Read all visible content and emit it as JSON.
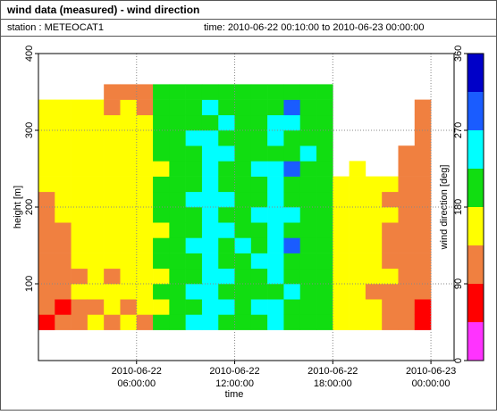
{
  "header": {
    "title": "wind data (measured) - wind direction",
    "station": "station : METEOCAT1",
    "time": "time: 2010-06-22 00:10:00 to 2010-06-23 00:00:00"
  },
  "chart_data": {
    "type": "heatmap",
    "xlabel": "time",
    "ylabel": "height [m]",
    "x": [
      "2010-06-22 00:00:00",
      "2010-06-22 01:00:00",
      "2010-06-22 02:00:00",
      "2010-06-22 03:00:00",
      "2010-06-22 04:00:00",
      "2010-06-22 05:00:00",
      "2010-06-22 06:00:00",
      "2010-06-22 07:00:00",
      "2010-06-22 08:00:00",
      "2010-06-22 09:00:00",
      "2010-06-22 10:00:00",
      "2010-06-22 11:00:00",
      "2010-06-22 12:00:00",
      "2010-06-22 13:00:00",
      "2010-06-22 14:00:00",
      "2010-06-22 15:00:00",
      "2010-06-22 16:00:00",
      "2010-06-22 17:00:00",
      "2010-06-22 18:00:00",
      "2010-06-22 19:00:00",
      "2010-06-22 20:00:00",
      "2010-06-22 21:00:00",
      "2010-06-22 22:00:00",
      "2010-06-22 23:00:00",
      "2010-06-23 00:00:00"
    ],
    "y": [
      40,
      60,
      80,
      100,
      120,
      140,
      160,
      180,
      200,
      220,
      240,
      260,
      280,
      300,
      320,
      340,
      360
    ],
    "values": [
      [
        70,
        115,
        115,
        115,
        115,
        115,
        115,
        115,
        115,
        160,
        160,
        160,
        160,
        160,
        160,
        null
      ],
      [
        115,
        70,
        115,
        115,
        115,
        115,
        115,
        160,
        160,
        160,
        160,
        160,
        160,
        160,
        160,
        null
      ],
      [
        115,
        115,
        160,
        115,
        160,
        160,
        160,
        160,
        160,
        160,
        160,
        160,
        160,
        160,
        160,
        null
      ],
      [
        160,
        115,
        160,
        160,
        160,
        160,
        160,
        160,
        160,
        160,
        160,
        160,
        160,
        160,
        160,
        null
      ],
      [
        115,
        160,
        160,
        115,
        160,
        160,
        160,
        160,
        160,
        160,
        160,
        160,
        160,
        160,
        115,
        115
      ],
      [
        160,
        115,
        160,
        160,
        160,
        160,
        160,
        160,
        160,
        160,
        160,
        160,
        160,
        160,
        160,
        115
      ],
      [
        115,
        160,
        160,
        160,
        160,
        160,
        160,
        160,
        160,
        160,
        160,
        160,
        160,
        160,
        115,
        115
      ],
      [
        200,
        160,
        200,
        160,
        200,
        200,
        160,
        200,
        200,
        200,
        160,
        200,
        200,
        200,
        200,
        200
      ],
      [
        200,
        200,
        200,
        200,
        200,
        200,
        200,
        200,
        200,
        200,
        200,
        200,
        200,
        200,
        200,
        200
      ],
      [
        245,
        200,
        245,
        200,
        200,
        245,
        200,
        200,
        245,
        200,
        200,
        200,
        245,
        200,
        200,
        200
      ],
      [
        245,
        245,
        245,
        245,
        245,
        245,
        245,
        245,
        245,
        245,
        245,
        245,
        245,
        200,
        245,
        200
      ],
      [
        200,
        245,
        200,
        245,
        200,
        200,
        245,
        200,
        245,
        200,
        200,
        245,
        200,
        245,
        200,
        200
      ],
      [
        200,
        200,
        200,
        200,
        200,
        245,
        200,
        200,
        200,
        200,
        200,
        200,
        200,
        200,
        200,
        200
      ],
      [
        200,
        245,
        200,
        200,
        245,
        200,
        200,
        245,
        200,
        200,
        245,
        200,
        200,
        200,
        200,
        200
      ],
      [
        245,
        245,
        200,
        245,
        245,
        245,
        245,
        245,
        245,
        245,
        245,
        200,
        245,
        245,
        200,
        200
      ],
      [
        200,
        200,
        245,
        200,
        200,
        290,
        200,
        245,
        200,
        200,
        290,
        200,
        200,
        245,
        290,
        200
      ],
      [
        200,
        200,
        200,
        200,
        200,
        200,
        200,
        200,
        200,
        200,
        200,
        245,
        200,
        200,
        200,
        200
      ],
      [
        200,
        200,
        200,
        200,
        200,
        200,
        200,
        200,
        200,
        200,
        200,
        200,
        200,
        200,
        200,
        200
      ],
      [
        160,
        160,
        160,
        160,
        160,
        160,
        160,
        160,
        160,
        160,
        null,
        null,
        null,
        null,
        null,
        null
      ],
      [
        160,
        160,
        160,
        160,
        160,
        160,
        160,
        160,
        160,
        160,
        160,
        null,
        null,
        null,
        null,
        null
      ],
      [
        160,
        160,
        115,
        160,
        160,
        160,
        160,
        160,
        160,
        160,
        null,
        null,
        null,
        null,
        null,
        null
      ],
      [
        115,
        115,
        115,
        160,
        115,
        115,
        115,
        160,
        115,
        160,
        null,
        null,
        null,
        null,
        null,
        null
      ],
      [
        115,
        115,
        115,
        115,
        115,
        115,
        115,
        115,
        115,
        115,
        115,
        115,
        null,
        null,
        null,
        null
      ],
      [
        70,
        70,
        115,
        115,
        115,
        115,
        115,
        115,
        115,
        115,
        115,
        115,
        115,
        115,
        115,
        null
      ]
    ],
    "xlim": [
      "2010-06-22 00:00:00",
      "2010-06-23 01:25:00"
    ],
    "xticks": [
      "2010-06-22 06:00:00",
      "2010-06-22 12:00:00",
      "2010-06-22 18:00:00",
      "2010-06-23 00:00:00"
    ],
    "ylim": [
      0,
      400
    ],
    "yticks": [
      100,
      200,
      300,
      400
    ],
    "grid": true,
    "colorbar": {
      "label": "wind direction [deg]",
      "lim": [
        0,
        360
      ],
      "ticks": [
        0,
        90,
        180,
        270,
        360
      ],
      "colors": [
        "#ff33ff",
        "#ff0000",
        "#f08040",
        "#ffff00",
        "#11dd11",
        "#00ffff",
        "#1a5cff",
        "#0000c8"
      ]
    }
  }
}
